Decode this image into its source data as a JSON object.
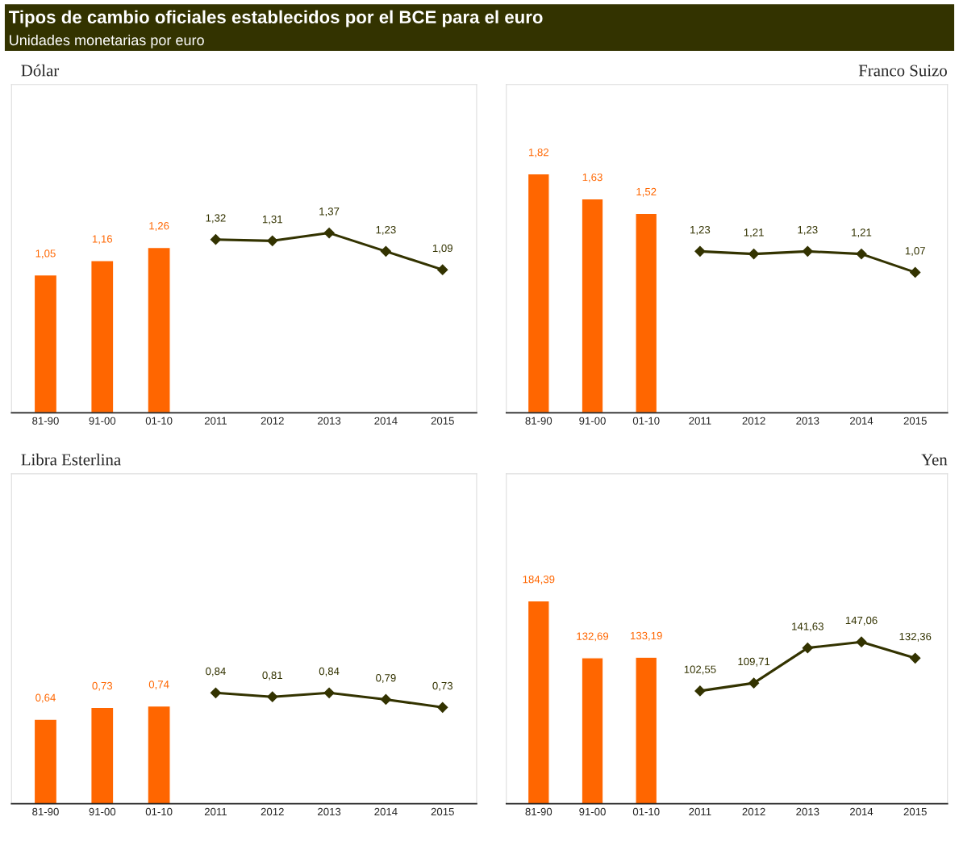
{
  "chart_data": [
    {
      "type": "other",
      "title": "Tipos de cambio oficiales establecidos por el BCE para el euro",
      "subtitle": "Unidades monetarias por euro"
    },
    {
      "type": "bar",
      "title": "Dólar",
      "categories": [
        "81-90",
        "91-00",
        "01-10",
        "2011",
        "2012",
        "2013",
        "2014",
        "2015"
      ],
      "ylim": [
        0,
        2.5
      ],
      "tick_labels": "x",
      "legend": false,
      "grid": false,
      "series": [
        {
          "type": "bar",
          "color": "#ff6600",
          "values": [
            1.05,
            1.16,
            1.26,
            null,
            null,
            null,
            null,
            null
          ],
          "value_labels": [
            "1,05",
            "1,16",
            "1,26",
            null,
            null,
            null,
            null,
            null
          ]
        },
        {
          "type": "line",
          "color": "#333300",
          "marker": "diamond",
          "line_style": "solid",
          "values": [
            null,
            null,
            null,
            1.32,
            1.31,
            1.37,
            1.23,
            1.09
          ],
          "value_labels": [
            null,
            null,
            null,
            "1,32",
            "1,31",
            "1,37",
            "1,23",
            "1,09"
          ]
        }
      ]
    },
    {
      "type": "bar",
      "title": "Franco Suizo",
      "categories": [
        "81-90",
        "91-00",
        "01-10",
        "2011",
        "2012",
        "2013",
        "2014",
        "2015"
      ],
      "ylim": [
        0,
        2.5
      ],
      "tick_labels": "x",
      "legend": false,
      "grid": false,
      "series": [
        {
          "type": "bar",
          "color": "#ff6600",
          "values": [
            1.82,
            1.63,
            1.52,
            null,
            null,
            null,
            null,
            null
          ],
          "value_labels": [
            "1,82",
            "1,63",
            "1,52",
            null,
            null,
            null,
            null,
            null
          ]
        },
        {
          "type": "line",
          "color": "#333300",
          "marker": "diamond",
          "line_style": "solid",
          "values": [
            null,
            null,
            null,
            1.23,
            1.21,
            1.23,
            1.21,
            1.07
          ],
          "value_labels": [
            null,
            null,
            null,
            "1,23",
            "1,21",
            "1,23",
            "1,21",
            "1,07"
          ]
        }
      ]
    },
    {
      "type": "bar",
      "title": "Libra Esterlina",
      "categories": [
        "81-90",
        "91-00",
        "01-10",
        "2011",
        "2012",
        "2013",
        "2014",
        "2015"
      ],
      "ylim": [
        0,
        2.5
      ],
      "tick_labels": "x",
      "legend": false,
      "grid": false,
      "series": [
        {
          "type": "bar",
          "color": "#ff6600",
          "values": [
            0.64,
            0.73,
            0.74,
            null,
            null,
            null,
            null,
            null
          ],
          "value_labels": [
            "0,64",
            "0,73",
            "0,74",
            null,
            null,
            null,
            null,
            null
          ]
        },
        {
          "type": "line",
          "color": "#333300",
          "marker": "diamond",
          "line_style": "solid",
          "values": [
            null,
            null,
            null,
            0.84,
            0.81,
            0.84,
            0.79,
            0.73
          ],
          "value_labels": [
            null,
            null,
            null,
            "0,84",
            "0,81",
            "0,84",
            "0,79",
            "0,73"
          ]
        }
      ]
    },
    {
      "type": "bar",
      "title": "Yen",
      "categories": [
        "81-90",
        "91-00",
        "01-10",
        "2011",
        "2012",
        "2013",
        "2014",
        "2015"
      ],
      "ylim": [
        0,
        300
      ],
      "tick_labels": "x",
      "legend": false,
      "grid": false,
      "series": [
        {
          "type": "bar",
          "color": "#ff6600",
          "values": [
            184.39,
            132.69,
            133.19,
            null,
            null,
            null,
            null,
            null
          ],
          "value_labels": [
            "184,39",
            "132,69",
            "133,19",
            null,
            null,
            null,
            null,
            null
          ]
        },
        {
          "type": "line",
          "color": "#333300",
          "marker": "diamond",
          "line_style": "solid",
          "values": [
            null,
            null,
            null,
            102.55,
            109.71,
            141.63,
            147.06,
            132.36
          ],
          "value_labels": [
            null,
            null,
            null,
            "102,55",
            "109,71",
            "141,63",
            "147,06",
            "132,36"
          ]
        }
      ]
    }
  ]
}
